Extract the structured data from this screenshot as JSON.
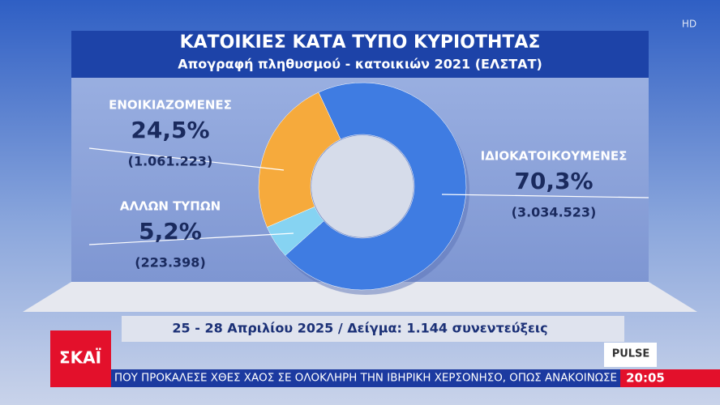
{
  "chart_data": {
    "type": "donut",
    "title": "ΚΑΤΟΙΚΙΕΣ ΚΑΤΑ ΤΥΠΟ ΚΥΡΙΟΤΗΤΑΣ",
    "subtitle": "Απογραφή πληθυσμού - κατοικιών 2021 (ΕΛΣΤΑΤ)",
    "categories": [
      "ΙΔΙΟΚΑΤΟΙΚΟΥΜΕΝΕΣ",
      "ΑΛΛΩΝ ΤΥΠΩΝ",
      "ΕΝΟΙΚΙΑΖΟΜΕΝΕΣ"
    ],
    "values": [
      70.3,
      5.2,
      24.5
    ],
    "value_labels": [
      "70,3%",
      "5,2%",
      "24,5%"
    ],
    "counts": [
      "(3.034.523)",
      "(223.398)",
      "(1.061.223)"
    ],
    "colors": [
      "#3f7ce2",
      "#86d3f2",
      "#f6aa3c"
    ],
    "footnote": "25 - 28 Απριλίου 2025 / Δείγμα: 1.144 συνεντεύξεις"
  },
  "broadcast": {
    "channel": "ΣΚΑΪ",
    "quality": "HD",
    "source_logo": "PULSE",
    "ticker": "ΠΟΥ ΠΡΟΚΑΛΕΣΕ ΧΘΕΣ ΧΑΟΣ ΣΕ ΟΛΟΚΛΗΡΗ ΤΗΝ ΙΒΗΡΙΚΗ ΧΕΡΣΟΝΗΣΟ, ΟΠΩΣ ΑΝΑΚΟΙΝΩΣΕ",
    "time": "20:05"
  }
}
